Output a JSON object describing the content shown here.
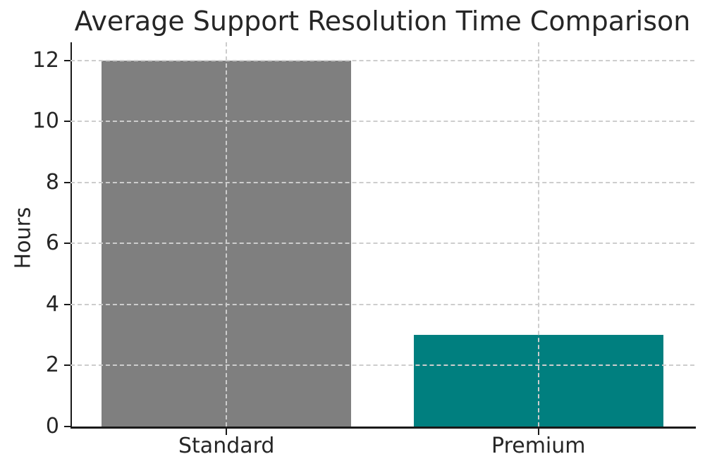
{
  "chart_data": {
    "type": "bar",
    "title": "Average Support Resolution Time Comparison",
    "xlabel": "",
    "ylabel": "Hours",
    "categories": [
      "Standard",
      "Premium"
    ],
    "values": [
      12,
      3
    ],
    "bar_colors": [
      "#7f7f7f",
      "#007f7f"
    ],
    "bar_width_frac": 0.8,
    "ylim": [
      0,
      12.6
    ],
    "yticks": [
      0,
      2,
      4,
      6,
      8,
      10,
      12
    ],
    "grid": true,
    "grid_style": "dashed",
    "grid_color": "#cdcdcd",
    "grid_above_bars": true,
    "axis_color": "#1a1a1a",
    "text_color": "#262626",
    "legend": "none"
  }
}
